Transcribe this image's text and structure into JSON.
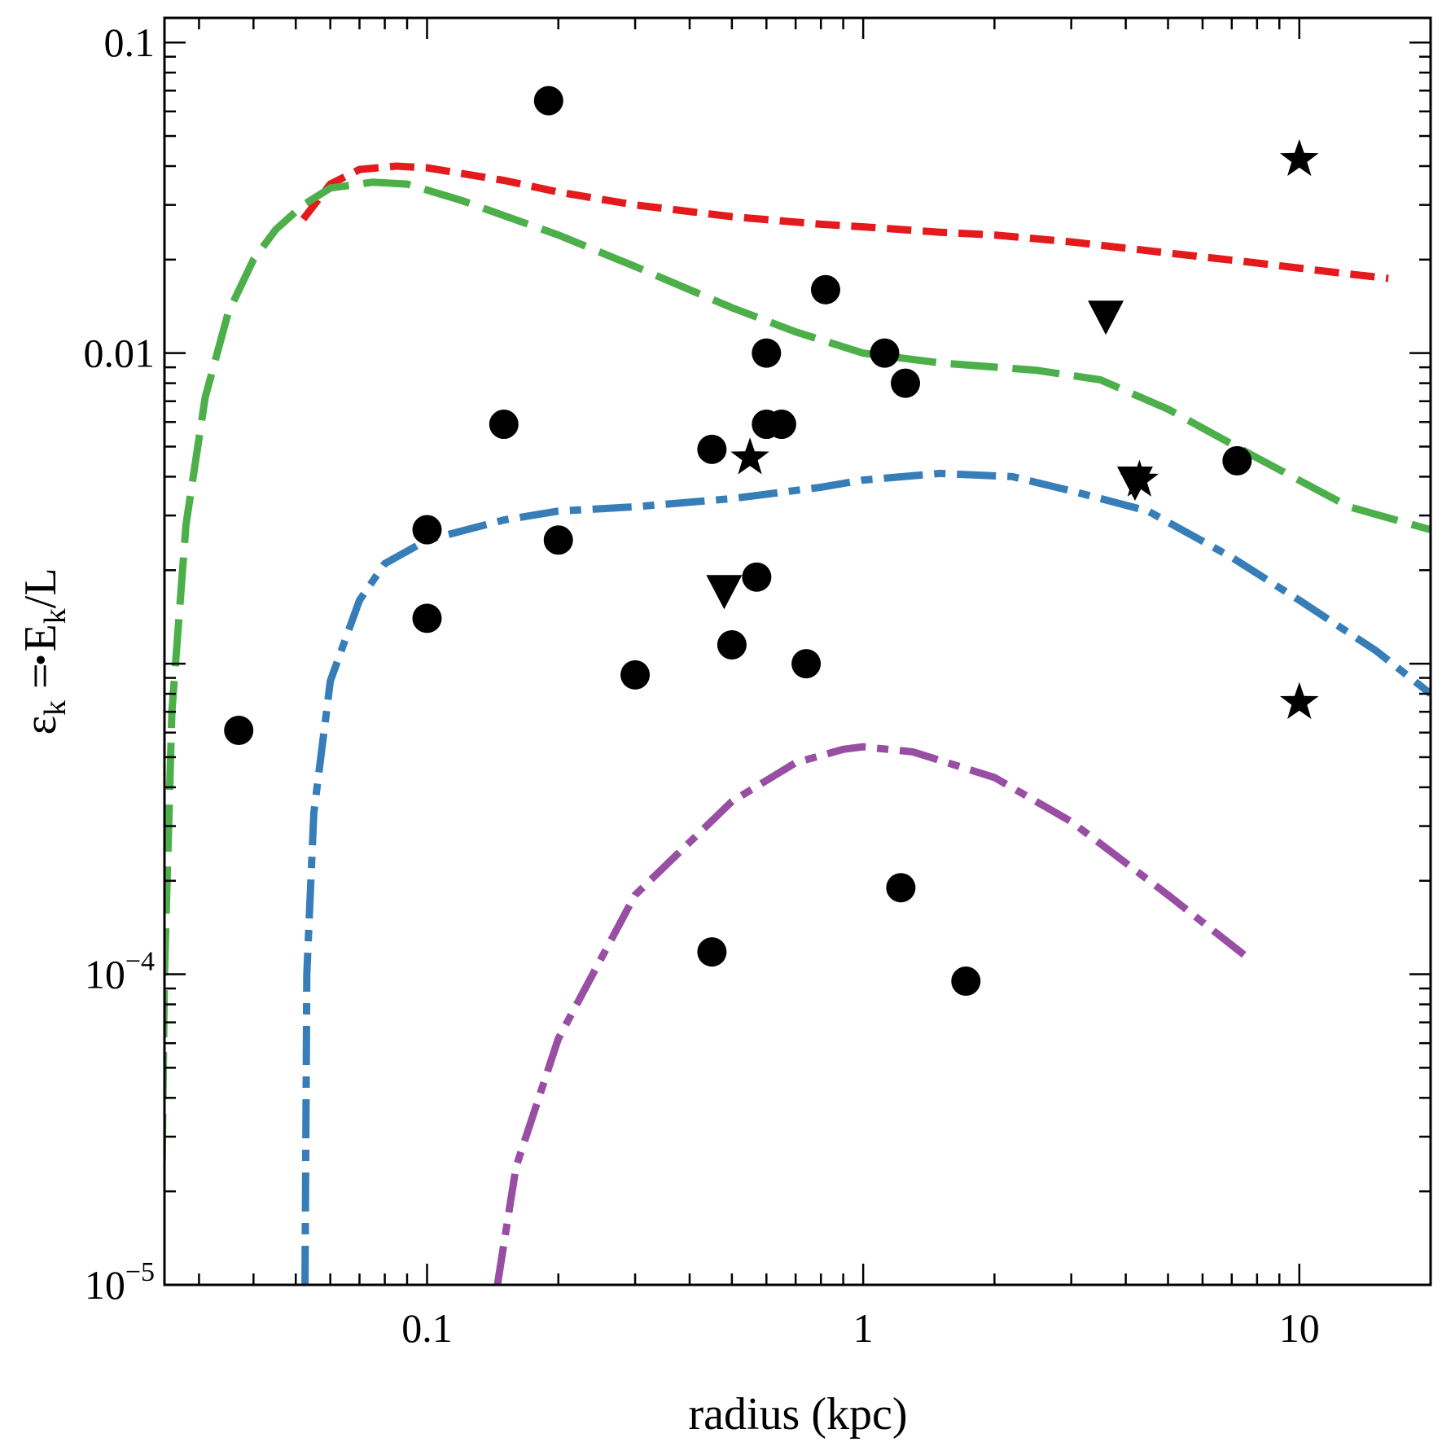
{
  "chart_data": {
    "type": "scatter",
    "title": "",
    "xlabel": "radius (kpc)",
    "ylabel": {
      "symbol": "ε",
      "symbol_sub": "k",
      "equals": " = ",
      "numerator": "E",
      "numerator_sub": "k",
      "denominator": "/L"
    },
    "x_scale": "log",
    "y_scale": "log",
    "xlim": [
      0.025,
      20
    ],
    "ylim": [
      1e-05,
      0.12
    ],
    "x_ticks": [
      {
        "value": 0.1,
        "label": "0.1"
      },
      {
        "value": 1,
        "label": "1"
      },
      {
        "value": 10,
        "label": "10"
      }
    ],
    "y_ticks": [
      {
        "value": 0.1,
        "label": "0.1",
        "base": "",
        "exp": ""
      },
      {
        "value": 0.01,
        "label": "0.01",
        "base": "",
        "exp": ""
      },
      {
        "value": 0.0001,
        "label": "",
        "base": "10",
        "exp": "−4"
      },
      {
        "value": 1e-05,
        "label": "",
        "base": "10",
        "exp": "−5"
      }
    ],
    "grid": false,
    "series": [
      {
        "name": "circles",
        "marker": "circle",
        "color": "#000000",
        "points": [
          [
            0.19,
            0.065
          ],
          [
            0.82,
            0.016
          ],
          [
            0.6,
            0.01
          ],
          [
            1.12,
            0.01
          ],
          [
            1.25,
            0.008
          ],
          [
            0.15,
            0.0059
          ],
          [
            0.6,
            0.0059
          ],
          [
            0.65,
            0.0059
          ],
          [
            0.45,
            0.0049
          ],
          [
            7.2,
            0.0045
          ],
          [
            0.1,
            0.0027
          ],
          [
            0.2,
            0.0025
          ],
          [
            0.57,
            0.0019
          ],
          [
            0.1,
            0.0014
          ],
          [
            0.5,
            0.00115
          ],
          [
            0.3,
            0.00092
          ],
          [
            0.74,
            0.001
          ],
          [
            0.037,
            0.00061
          ],
          [
            1.22,
            0.00019
          ],
          [
            0.45,
            0.000118
          ],
          [
            1.72,
            9.5e-05
          ]
        ]
      },
      {
        "name": "stars",
        "marker": "star",
        "color": "#000000",
        "points": [
          [
            10,
            0.042
          ],
          [
            0.55,
            0.0046
          ],
          [
            4.3,
            0.0039
          ],
          [
            10,
            0.00075
          ]
        ]
      },
      {
        "name": "triangles",
        "marker": "triangle-down",
        "color": "#000000",
        "points": [
          [
            3.6,
            0.013
          ],
          [
            0.48,
            0.0017
          ],
          [
            4.2,
            0.0038
          ]
        ]
      }
    ],
    "curves": [
      {
        "name": "red-curve",
        "color": "#e41a1c",
        "dash": "short",
        "points": [
          [
            0.052,
            0.027
          ],
          [
            0.06,
            0.035
          ],
          [
            0.07,
            0.039
          ],
          [
            0.085,
            0.04
          ],
          [
            0.1,
            0.0395
          ],
          [
            0.15,
            0.036
          ],
          [
            0.2,
            0.033
          ],
          [
            0.3,
            0.03
          ],
          [
            0.5,
            0.0275
          ],
          [
            0.8,
            0.026
          ],
          [
            1,
            0.0255
          ],
          [
            1.5,
            0.0245
          ],
          [
            2,
            0.024
          ],
          [
            3,
            0.0228
          ],
          [
            5,
            0.021
          ],
          [
            8,
            0.0195
          ],
          [
            12,
            0.0182
          ],
          [
            16,
            0.0174
          ]
        ]
      },
      {
        "name": "green-curve",
        "color": "#4daf4a",
        "dash": "long",
        "points": [
          [
            0.0245,
            1e-05
          ],
          [
            0.025,
            0.0001
          ],
          [
            0.026,
            0.0007
          ],
          [
            0.028,
            0.0028
          ],
          [
            0.031,
            0.0072
          ],
          [
            0.035,
            0.0135
          ],
          [
            0.04,
            0.02
          ],
          [
            0.045,
            0.025
          ],
          [
            0.052,
            0.03
          ],
          [
            0.06,
            0.034
          ],
          [
            0.075,
            0.0355
          ],
          [
            0.09,
            0.035
          ],
          [
            0.12,
            0.031
          ],
          [
            0.2,
            0.024
          ],
          [
            0.3,
            0.019
          ],
          [
            0.5,
            0.014
          ],
          [
            0.7,
            0.0117
          ],
          [
            1,
            0.01
          ],
          [
            1.5,
            0.0093
          ],
          [
            2.5,
            0.0088
          ],
          [
            3.5,
            0.0082
          ],
          [
            5,
            0.0066
          ],
          [
            8,
            0.0046
          ],
          [
            13,
            0.0032
          ],
          [
            20,
            0.0027
          ]
        ]
      },
      {
        "name": "blue-curve",
        "color": "#377eb8",
        "dash": "dashdot",
        "points": [
          [
            0.0525,
            1e-05
          ],
          [
            0.053,
            0.0001
          ],
          [
            0.055,
            0.00033
          ],
          [
            0.06,
            0.00088
          ],
          [
            0.07,
            0.0016
          ],
          [
            0.08,
            0.0021
          ],
          [
            0.1,
            0.0025
          ],
          [
            0.15,
            0.0029
          ],
          [
            0.2,
            0.0031
          ],
          [
            0.3,
            0.0032
          ],
          [
            0.5,
            0.0034
          ],
          [
            0.8,
            0.0037
          ],
          [
            1,
            0.0039
          ],
          [
            1.5,
            0.0041
          ],
          [
            2.2,
            0.004
          ],
          [
            3,
            0.0036
          ],
          [
            4.5,
            0.0031
          ],
          [
            7,
            0.0022
          ],
          [
            10,
            0.0016
          ],
          [
            15,
            0.0011
          ],
          [
            20,
            0.0008
          ]
        ]
      },
      {
        "name": "purple-curve",
        "color": "#984ea3",
        "dash": "dashdot",
        "points": [
          [
            0.145,
            1e-05
          ],
          [
            0.16,
            2.4e-05
          ],
          [
            0.2,
            6.2e-05
          ],
          [
            0.3,
            0.00018
          ],
          [
            0.5,
            0.00036
          ],
          [
            0.7,
            0.00048
          ],
          [
            0.9,
            0.00053
          ],
          [
            1,
            0.00054
          ],
          [
            1.3,
            0.00052
          ],
          [
            2,
            0.00043
          ],
          [
            3,
            0.00031
          ],
          [
            5,
            0.00018
          ],
          [
            7.5,
            0.000115
          ]
        ]
      }
    ]
  }
}
